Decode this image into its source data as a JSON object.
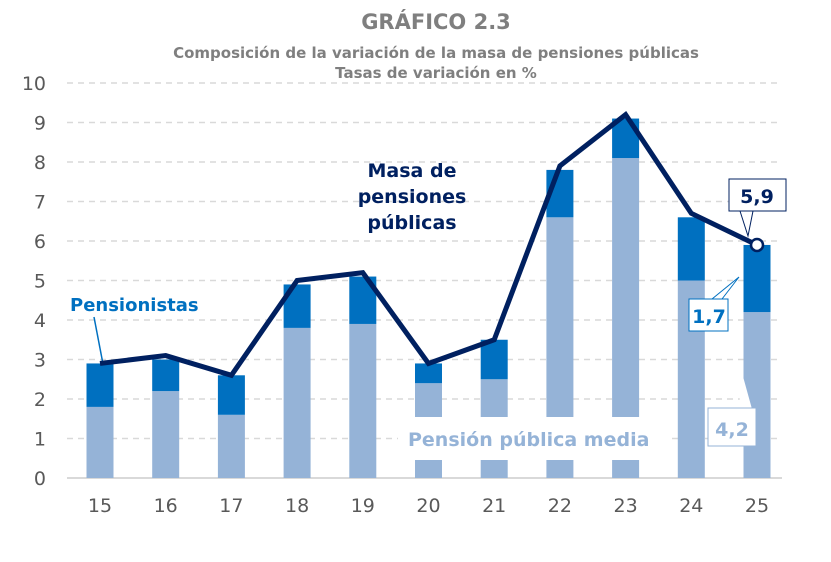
{
  "chart_data": {
    "type": "bar",
    "title": "GRÁFICO 2.3",
    "subtitle": [
      "Composición de la variación de la masa de pensiones públicas",
      "Tasas de variación en %"
    ],
    "xlabel": "",
    "ylabel": "",
    "ylim": [
      0,
      10
    ],
    "yticks": [
      0,
      1,
      2,
      3,
      4,
      5,
      6,
      7,
      8,
      9,
      10
    ],
    "grid": true,
    "categories": [
      "15",
      "16",
      "17",
      "18",
      "19",
      "20",
      "21",
      "22",
      "23",
      "24",
      "25"
    ],
    "stacked_series": [
      {
        "name": "Pensión pública media",
        "color": "#95B3D7",
        "values": [
          1.8,
          2.2,
          1.6,
          3.8,
          3.9,
          2.4,
          2.5,
          6.6,
          8.1,
          5.0,
          4.2
        ]
      },
      {
        "name": "Pensionistas",
        "color": "#0070C0",
        "values": [
          1.1,
          0.8,
          1.0,
          1.1,
          1.2,
          0.5,
          1.0,
          1.2,
          1.0,
          1.6,
          1.7
        ]
      }
    ],
    "line_series": {
      "name": "Masa de pensiones públicas",
      "name_lines": [
        "Masa de",
        "pensiones",
        "públicas"
      ],
      "color": "#002060",
      "values": [
        2.9,
        3.1,
        2.6,
        5.0,
        5.2,
        2.9,
        3.5,
        7.9,
        9.2,
        6.7,
        5.9
      ]
    },
    "data_labels": {
      "total": "5,9",
      "pensionistas": "1,7",
      "pension_media": "4,2"
    }
  }
}
